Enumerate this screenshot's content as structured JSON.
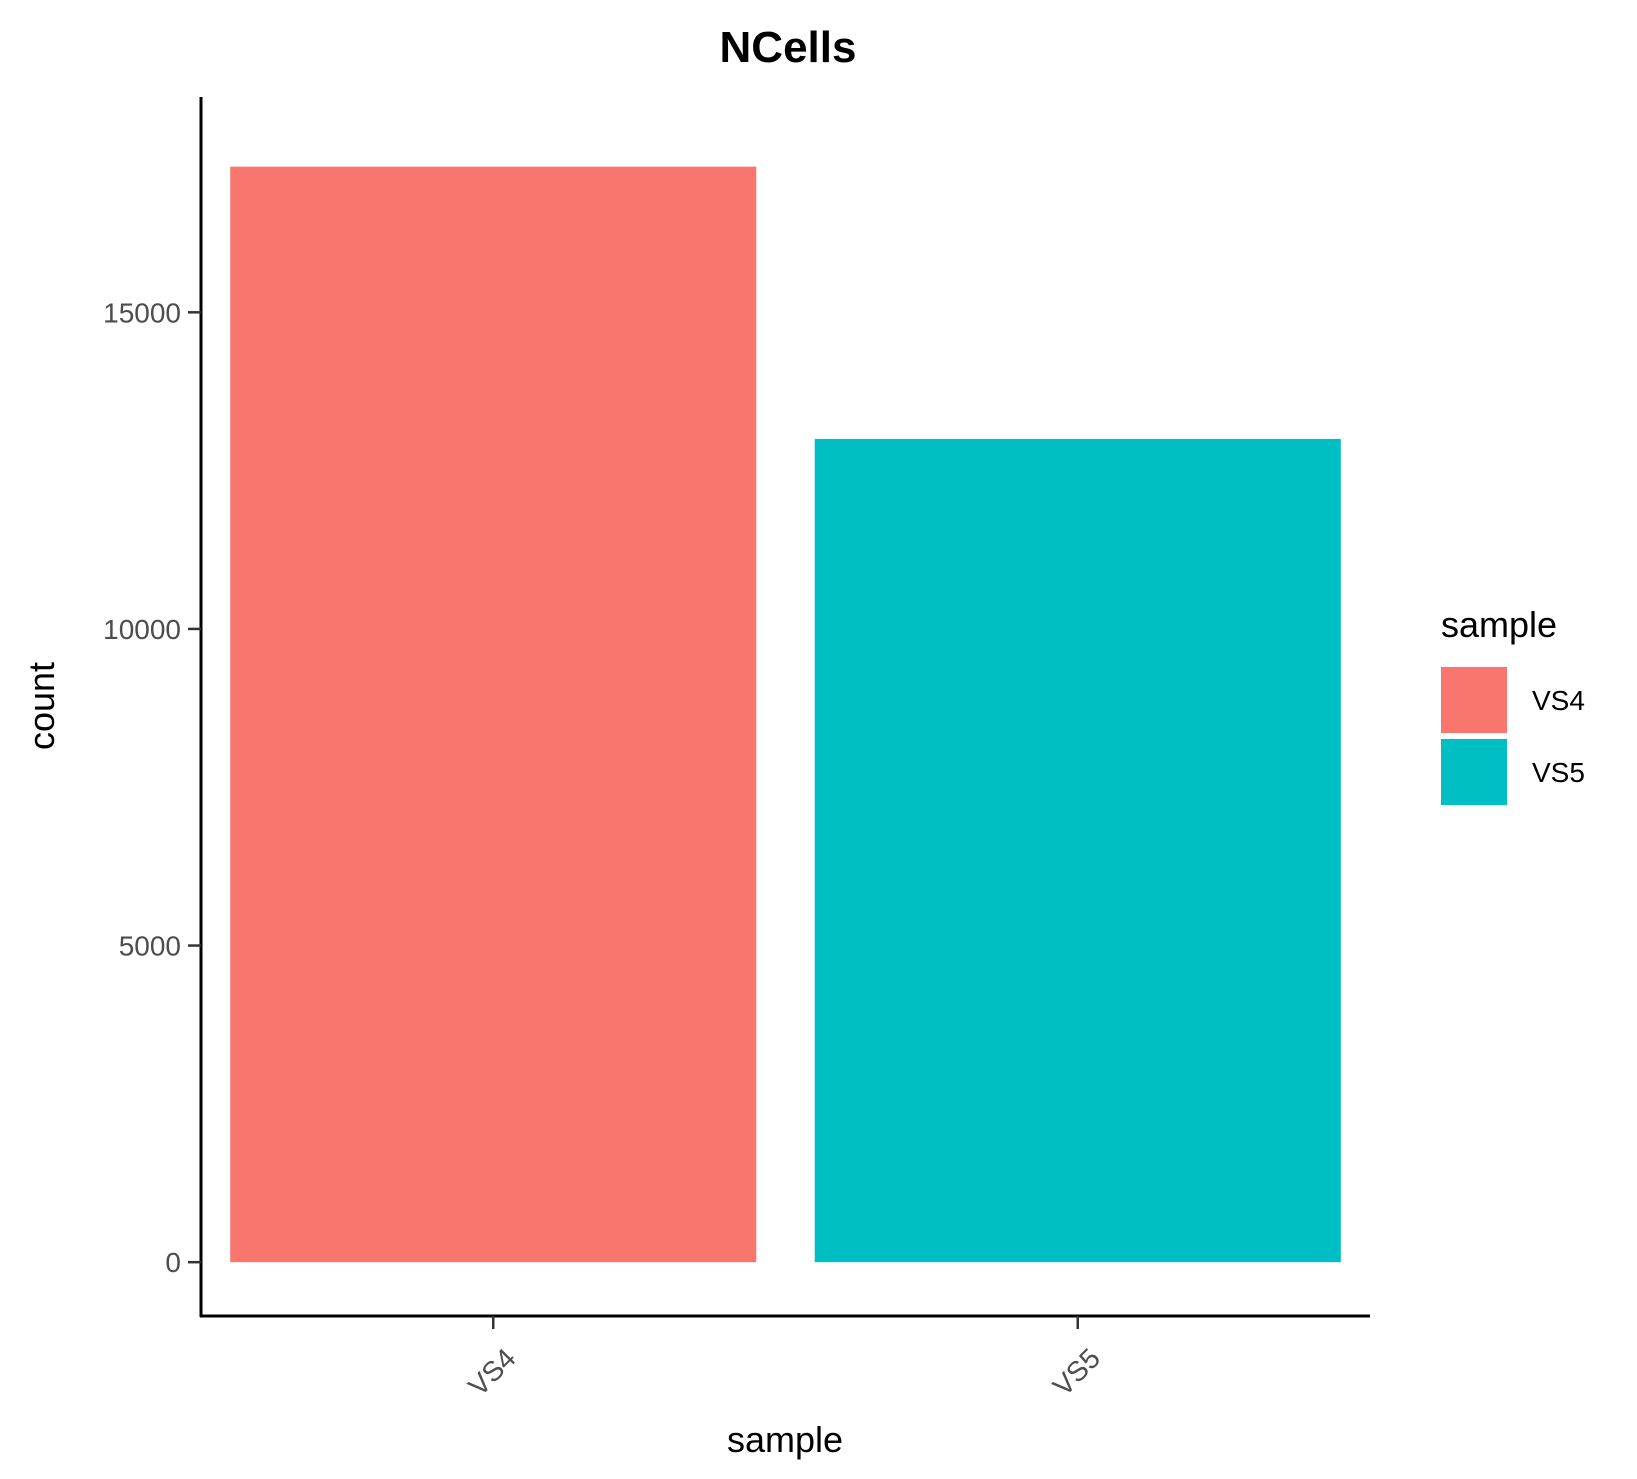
{
  "chart_data": {
    "type": "bar",
    "title": "NCells",
    "xlabel": "sample",
    "ylabel": "count",
    "categories": [
      "VS4",
      "VS5"
    ],
    "values": [
      17300,
      13000
    ],
    "colors": [
      "#F8766D",
      "#00BFC4"
    ],
    "ylim": [
      -850,
      18400
    ],
    "yticks": [
      0,
      5000,
      10000,
      15000
    ],
    "ytick_labels": [
      "0",
      "5000",
      "10000",
      "15000"
    ],
    "grid": false,
    "legend": {
      "title": "sample",
      "position": "right",
      "entries": [
        {
          "label": "VS4",
          "color": "#F8766D"
        },
        {
          "label": "VS5",
          "color": "#00BFC4"
        }
      ]
    }
  }
}
